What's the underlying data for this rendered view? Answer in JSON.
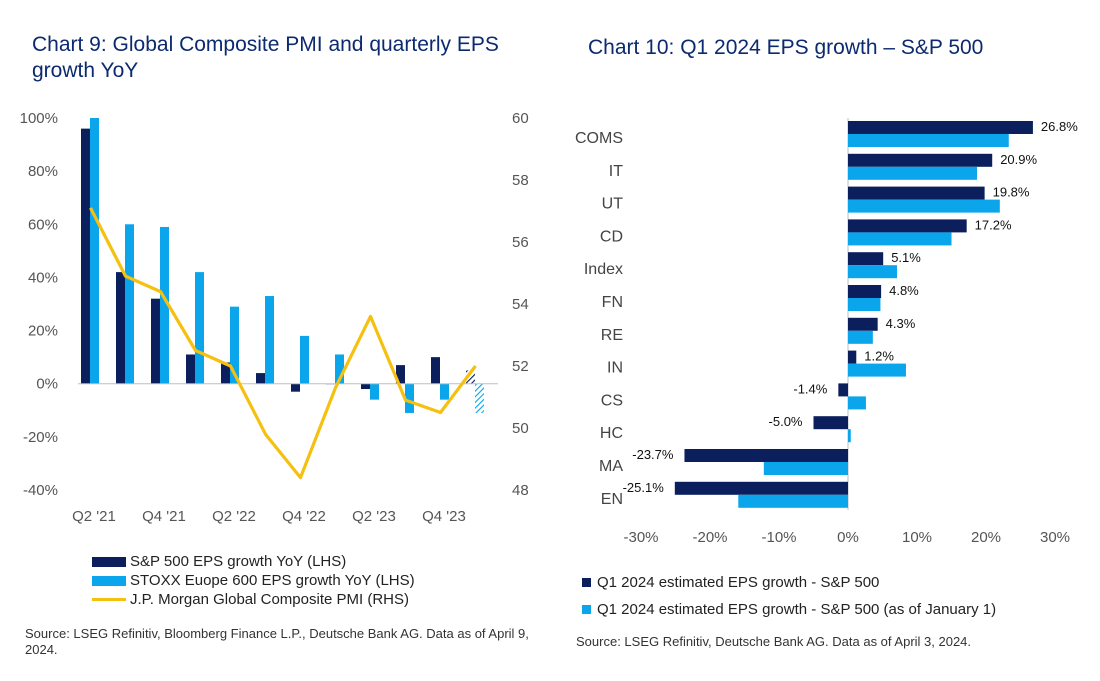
{
  "colors": {
    "navy": "#0b1f5c",
    "cyan": "#0aa5eb",
    "gold": "#f5c010",
    "title": "#0b2a6f"
  },
  "left_title": "Chart 9: Global Composite PMI and quarterly EPS growth YoY",
  "right_title": "Chart 10: Q1 2024 EPS growth – S&P 500",
  "left_source": "Source: LSEG Refinitiv, Bloomberg Finance L.P., Deutsche Bank AG. Data as of April 9, 2024.",
  "right_source": "Source: LSEG Refinitiv, Deutsche Bank AG. Data as of April 3, 2024.",
  "chart_data": [
    {
      "type": "bar",
      "title": "Chart 9: Global Composite PMI and quarterly EPS growth YoY",
      "categories": [
        "Q2 '21",
        "Q3 '21",
        "Q4 '21",
        "Q1 '22",
        "Q2 '22",
        "Q3 '22",
        "Q4 '22",
        "Q1 '23",
        "Q2 '23",
        "Q3 '23",
        "Q4 '23",
        "Q1 '24"
      ],
      "x_tick_labels": [
        "Q2 '21",
        "Q4 '21",
        "Q2 '22",
        "Q4 '22",
        "Q2 '23",
        "Q4 '23"
      ],
      "series": [
        {
          "name": "S&P 500 EPS growth YoY (LHS)",
          "axis": "left",
          "values": [
            96,
            42,
            32,
            11,
            8,
            4,
            -3,
            0,
            -2,
            7,
            10,
            5
          ]
        },
        {
          "name": "STOXX Euope 600 EPS growth YoY (LHS)",
          "axis": "left",
          "values": [
            100,
            60,
            59,
            42,
            29,
            33,
            18,
            11,
            -6,
            -11,
            -6,
            -11
          ],
          "estimate_last": true
        },
        {
          "name": "J.P. Morgan Global Composite PMI (RHS)",
          "axis": "right",
          "type": "line",
          "values": [
            57.1,
            54.9,
            54.4,
            52.5,
            52.0,
            49.8,
            48.4,
            51.3,
            53.6,
            50.9,
            50.5,
            52.0
          ]
        }
      ],
      "y_left": {
        "min": -40,
        "max": 100,
        "ticks": [
          "-40%",
          "-20%",
          "0%",
          "20%",
          "40%",
          "60%",
          "80%",
          "100%"
        ],
        "tick_values": [
          -40,
          -20,
          0,
          20,
          40,
          60,
          80,
          100
        ]
      },
      "y_right": {
        "min": 48,
        "max": 60,
        "ticks": [
          "48",
          "50",
          "52",
          "54",
          "56",
          "58",
          "60"
        ],
        "tick_values": [
          48,
          50,
          52,
          54,
          56,
          58,
          60
        ]
      },
      "legend": [
        "S&P 500 EPS growth YoY (LHS)",
        "STOXX Euope 600 EPS growth YoY (LHS)",
        "J.P. Morgan Global Composite PMI (RHS)"
      ]
    },
    {
      "type": "bar",
      "orientation": "horizontal",
      "title": "Chart 10: Q1 2024 EPS growth – S&P 500",
      "categories": [
        "COMS",
        "IT",
        "UT",
        "CD",
        "Index",
        "FN",
        "RE",
        "IN",
        "CS",
        "HC",
        "MA",
        "EN"
      ],
      "series": [
        {
          "name": "Q1 2024 estimated EPS growth - S&P 500",
          "values": [
            26.8,
            20.9,
            19.8,
            17.2,
            5.1,
            4.8,
            4.3,
            1.2,
            -1.4,
            -5.0,
            -23.7,
            -25.1
          ],
          "labels": [
            "26.8%",
            "20.9%",
            "19.8%",
            "17.2%",
            "5.1%",
            "4.8%",
            "4.3%",
            "1.2%",
            "-1.4%",
            "-5.0%",
            "-23.7%",
            "-25.1%"
          ]
        },
        {
          "name": "Q1 2024 estimated EPS growth - S&P 500 (as of January 1)",
          "values": [
            23.3,
            18.7,
            22.0,
            15.0,
            7.1,
            4.7,
            3.6,
            8.4,
            2.6,
            0.4,
            -12.2,
            -15.9
          ]
        }
      ],
      "x_axis": {
        "min": -30,
        "max": 30,
        "ticks": [
          "-30%",
          "-20%",
          "-10%",
          "0%",
          "10%",
          "20%",
          "30%"
        ],
        "tick_values": [
          -30,
          -20,
          -10,
          0,
          10,
          20,
          30
        ]
      },
      "legend": [
        "Q1 2024 estimated EPS growth - S&P 500",
        "Q1 2024 estimated EPS growth - S&P 500 (as of January 1)"
      ]
    }
  ]
}
